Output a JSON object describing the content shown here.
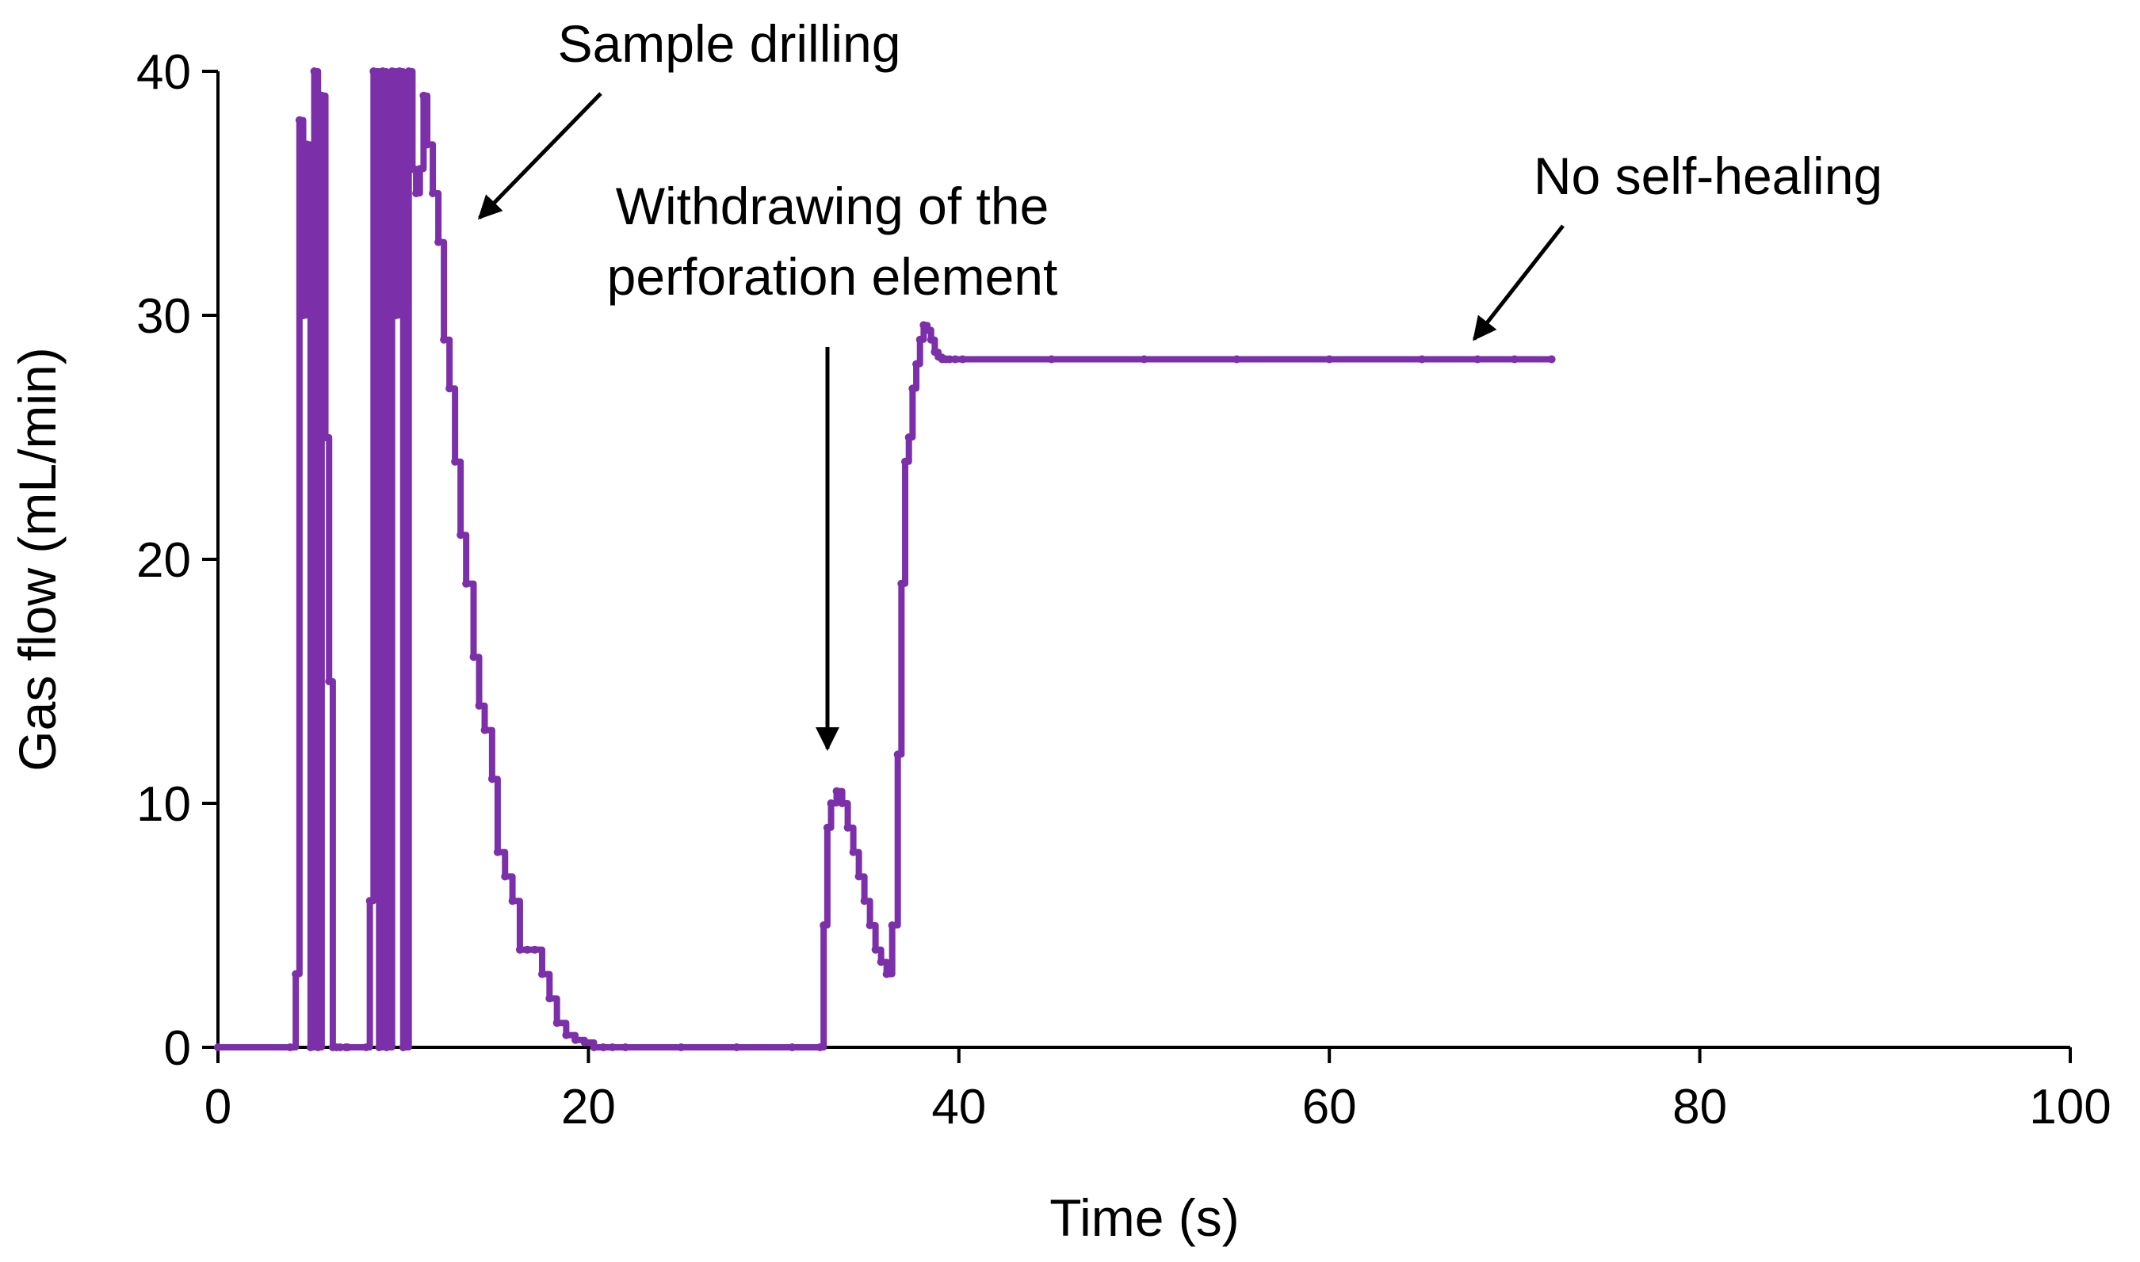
{
  "chart_data": {
    "type": "line",
    "title": "",
    "xlabel": "Time (s)",
    "ylabel": "Gas flow (mL/min)",
    "xlim": [
      0,
      100
    ],
    "ylim": [
      0,
      40
    ],
    "x_ticks": [
      "0",
      "20",
      "40",
      "60",
      "80",
      "100"
    ],
    "y_ticks": [
      "0",
      "10",
      "20",
      "30",
      "40"
    ],
    "grid": false,
    "legend": "none",
    "series": [
      {
        "color": "#7B2FA8",
        "x": [
          0,
          3.9,
          4.2,
          4.4,
          4.6,
          4.8,
          5.0,
          5.2,
          5.4,
          5.6,
          5.8,
          6.0,
          6.2,
          6.4,
          6.6,
          6.9,
          7.0,
          8.0,
          8.2,
          8.4,
          8.7,
          8.9,
          9.1,
          9.4,
          9.6,
          9.8,
          10.0,
          10.3,
          10.5,
          10.7,
          10.9,
          11.1,
          11.3,
          11.6,
          11.9,
          12.2,
          12.5,
          12.8,
          13.1,
          13.4,
          13.8,
          14.1,
          14.4,
          14.8,
          15.1,
          15.5,
          15.9,
          16.3,
          16.7,
          17.1,
          17.5,
          17.9,
          18.3,
          18.8,
          19.3,
          19.8,
          20.3,
          20.8,
          21.3,
          22.0,
          25.0,
          28.0,
          31.0,
          32.5,
          32.7,
          32.9,
          33.1,
          33.4,
          33.7,
          34.0,
          34.3,
          34.6,
          34.9,
          35.2,
          35.5,
          35.8,
          36.1,
          36.4,
          36.7,
          36.9,
          37.1,
          37.3,
          37.5,
          37.7,
          37.9,
          38.1,
          38.3,
          38.5,
          38.7,
          38.9,
          39.1,
          39.3,
          39.5,
          39.8,
          40.2,
          45.0,
          50.0,
          55.0,
          60.0,
          65.0,
          68.0,
          70.0,
          72.0
        ],
        "values": [
          0,
          0,
          3,
          38,
          30,
          37,
          0,
          40,
          0,
          39,
          25,
          15,
          0,
          0,
          0,
          0,
          0,
          0,
          6,
          40,
          0,
          40,
          0,
          40,
          30,
          40,
          0,
          40,
          36,
          35,
          36,
          39,
          37,
          35,
          33,
          29,
          27,
          24,
          21,
          19,
          16,
          14,
          13,
          11,
          8,
          7,
          6,
          4,
          4,
          4,
          3,
          2,
          1,
          0.5,
          0.3,
          0.2,
          0,
          0,
          0,
          0,
          0,
          0,
          0,
          0,
          5,
          9,
          10,
          10.5,
          10,
          9,
          8,
          7,
          6,
          5,
          4,
          3.5,
          3,
          5,
          12,
          19,
          24,
          25,
          27,
          28,
          29,
          29.6,
          29.4,
          29,
          28.5,
          28.3,
          28.2,
          28.2,
          28.2,
          28.2,
          28.2,
          28.2,
          28.2,
          28.2,
          28.2,
          28.2,
          28.2,
          28.2,
          28.2
        ]
      }
    ],
    "annotations": [
      {
        "text": "Sample drilling",
        "arrow_to": [
          13.8,
          34.5
        ]
      },
      {
        "lines": [
          "Withdrawing  of the",
          "perforation  element"
        ],
        "arrow_to": [
          32.7,
          12.5
        ]
      },
      {
        "text": "No self-healing",
        "arrow_to": [
          67.8,
          29.3
        ]
      }
    ]
  }
}
